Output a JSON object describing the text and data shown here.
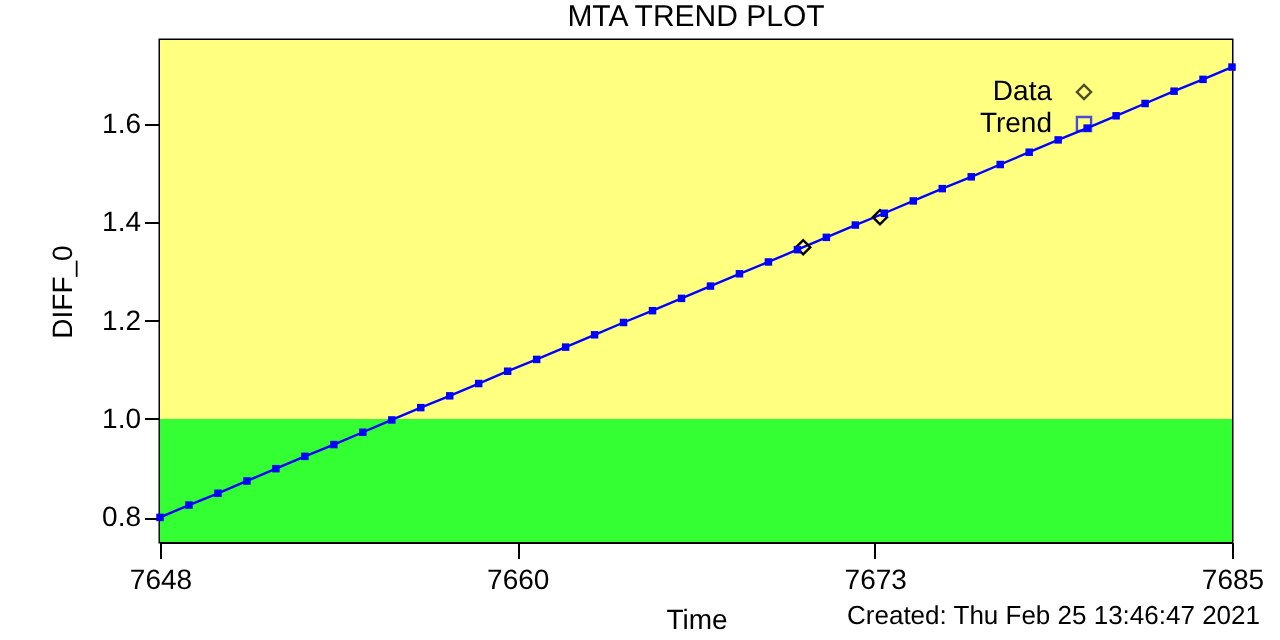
{
  "chart_data": {
    "type": "line",
    "title": "MTA TREND PLOT",
    "xlabel": "Time",
    "ylabel": "DIFF_0",
    "annotations": [
      "Created: Thu Feb 25 13:46:47 2021"
    ],
    "xlim": [
      7648,
      7685
    ],
    "xticks": [
      7648,
      {
        "value": 7660.33,
        "label": "7660"
      },
      {
        "value": 7672.67,
        "label": "7673"
      },
      7685
    ],
    "ylim": [
      0.75,
      1.77
    ],
    "yticks": [
      0.8,
      {
        "value": 1,
        "label": "1.0"
      },
      1.2,
      1.4,
      1.6
    ],
    "grid": false,
    "legend": "top right",
    "bands": [
      {
        "axis": "y",
        "from": 0.75,
        "to": 1.0,
        "color": "#33ff33"
      },
      {
        "axis": "y",
        "from": 1.0,
        "to": 1.77,
        "color": "#ffff80"
      }
    ],
    "series": [
      {
        "name": "Data",
        "type": "scatter",
        "marker": "diamond",
        "color": "#000000",
        "x": [
          7670.2,
          7672.85
        ],
        "values": [
          1.349,
          1.41
        ]
      },
      {
        "name": "Trend",
        "type": "line",
        "marker": "square",
        "color": "#0000ff",
        "x": [
          7648,
          7649,
          7650,
          7651,
          7652,
          7653,
          7654,
          7655,
          7656,
          7657,
          7658,
          7659,
          7660,
          7661,
          7662,
          7663,
          7664,
          7665,
          7666,
          7667,
          7668,
          7669,
          7670,
          7671,
          7672,
          7673,
          7674,
          7675,
          7676,
          7677,
          7678,
          7679,
          7680,
          7681,
          7682,
          7683,
          7684,
          7685
        ],
        "values": [
          0.8,
          0.825,
          0.849,
          0.874,
          0.899,
          0.924,
          0.948,
          0.973,
          0.998,
          1.023,
          1.047,
          1.072,
          1.097,
          1.121,
          1.146,
          1.171,
          1.196,
          1.22,
          1.245,
          1.27,
          1.295,
          1.319,
          1.344,
          1.369,
          1.394,
          1.418,
          1.443,
          1.468,
          1.492,
          1.517,
          1.542,
          1.567,
          1.591,
          1.616,
          1.641,
          1.666,
          1.69,
          1.715
        ]
      }
    ]
  }
}
